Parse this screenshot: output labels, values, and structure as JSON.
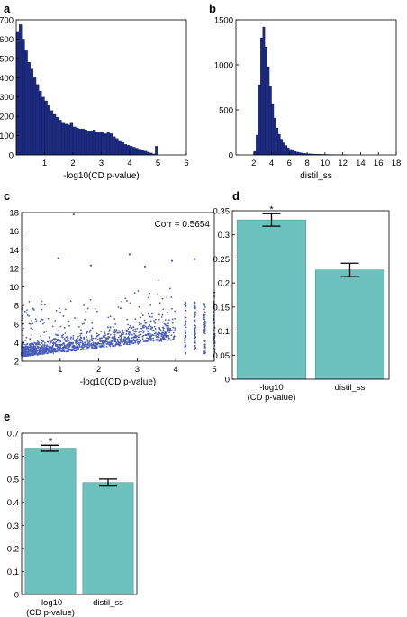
{
  "panels": {
    "a": "a",
    "b": "b",
    "c": "c",
    "d": "d",
    "e": "e"
  },
  "colors": {
    "hist_bar": "#1c2a80",
    "scatter_point": "#4a5cba",
    "teal_bar": "#6cc1bf",
    "axis": "#000000"
  },
  "chart_data": [
    {
      "id": "a",
      "type": "bar",
      "subtype": "histogram",
      "xlabel": "-log10(CD p-value)",
      "ylabel": "",
      "xlim": [
        0,
        6
      ],
      "ylim": [
        0,
        700
      ],
      "xticks": [
        1,
        2,
        3,
        4,
        5,
        6
      ],
      "yticks": [
        0,
        100,
        200,
        300,
        400,
        500,
        600,
        700
      ],
      "bin_width": 0.1,
      "bins_start": 0.0,
      "values": [
        640,
        675,
        600,
        540,
        480,
        445,
        400,
        365,
        330,
        300,
        280,
        255,
        230,
        210,
        195,
        180,
        165,
        160,
        155,
        165,
        145,
        140,
        135,
        135,
        130,
        125,
        125,
        130,
        120,
        115,
        120,
        110,
        115,
        110,
        95,
        85,
        75,
        65,
        55,
        50,
        45,
        40,
        35,
        30,
        25,
        20,
        15,
        10,
        5,
        45
      ]
    },
    {
      "id": "b",
      "type": "bar",
      "subtype": "histogram",
      "xlabel": "distil_ss",
      "ylabel": "",
      "xlim": [
        0,
        18
      ],
      "ylim": [
        0,
        1500
      ],
      "xticks": [
        2,
        4,
        6,
        8,
        10,
        12,
        14,
        16,
        18
      ],
      "yticks": [
        0,
        500,
        1000,
        1500
      ],
      "bin_width": 0.25,
      "bins_start": 2.0,
      "values": [
        40,
        220,
        780,
        1300,
        1420,
        1200,
        980,
        760,
        560,
        410,
        300,
        230,
        175,
        135,
        105,
        80,
        62,
        50,
        40,
        32,
        26,
        22,
        18,
        15,
        13,
        11,
        10,
        9,
        8,
        7,
        6,
        6,
        5,
        5,
        4,
        4,
        3,
        3,
        3,
        2,
        2,
        2
      ]
    },
    {
      "id": "c",
      "type": "scatter",
      "xlabel": "-log10(CD p-value)",
      "ylabel": "",
      "xlim": [
        0,
        5
      ],
      "ylim": [
        2,
        18
      ],
      "xticks": [
        1,
        2,
        3,
        4,
        5
      ],
      "yticks": [
        2,
        4,
        6,
        8,
        10,
        12,
        14,
        16,
        18
      ],
      "annotation": "Corr = 0.5654",
      "outliers": [
        [
          1.35,
          17.8
        ],
        [
          0.95,
          13.1
        ],
        [
          2.8,
          13.5
        ],
        [
          4.5,
          13.0
        ],
        [
          3.9,
          12.8
        ],
        [
          1.8,
          12.3
        ],
        [
          3.2,
          12.2
        ]
      ]
    },
    {
      "id": "d",
      "type": "bar",
      "categories": [
        "-log10\n(CD p-value)",
        "distil_ss"
      ],
      "values": [
        0.331,
        0.227
      ],
      "errors": [
        0.013,
        0.014
      ],
      "significance": [
        "*",
        ""
      ],
      "ylim": [
        0,
        0.35
      ],
      "yticks": [
        0,
        0.05,
        0.1,
        0.15,
        0.2,
        0.25,
        0.3,
        0.35
      ],
      "ytick_labels": [
        "0",
        "0.05",
        "0.1",
        "0.15",
        "0.2",
        "0.25",
        "0.3",
        "0.35"
      ],
      "xlabel": "",
      "ylabel": ""
    },
    {
      "id": "e",
      "type": "bar",
      "categories": [
        "-log10\n(CD p-value)",
        "distil_ss"
      ],
      "values": [
        0.635,
        0.486
      ],
      "errors": [
        0.013,
        0.015
      ],
      "significance": [
        "*",
        ""
      ],
      "ylim": [
        0,
        0.7
      ],
      "yticks": [
        0,
        0.1,
        0.2,
        0.3,
        0.4,
        0.5,
        0.6,
        0.7
      ],
      "ytick_labels": [
        "0",
        "0.1",
        "0.2",
        "0.3",
        "0.4",
        "0.5",
        "0.6",
        "0.7"
      ],
      "xlabel": "",
      "ylabel": ""
    }
  ]
}
